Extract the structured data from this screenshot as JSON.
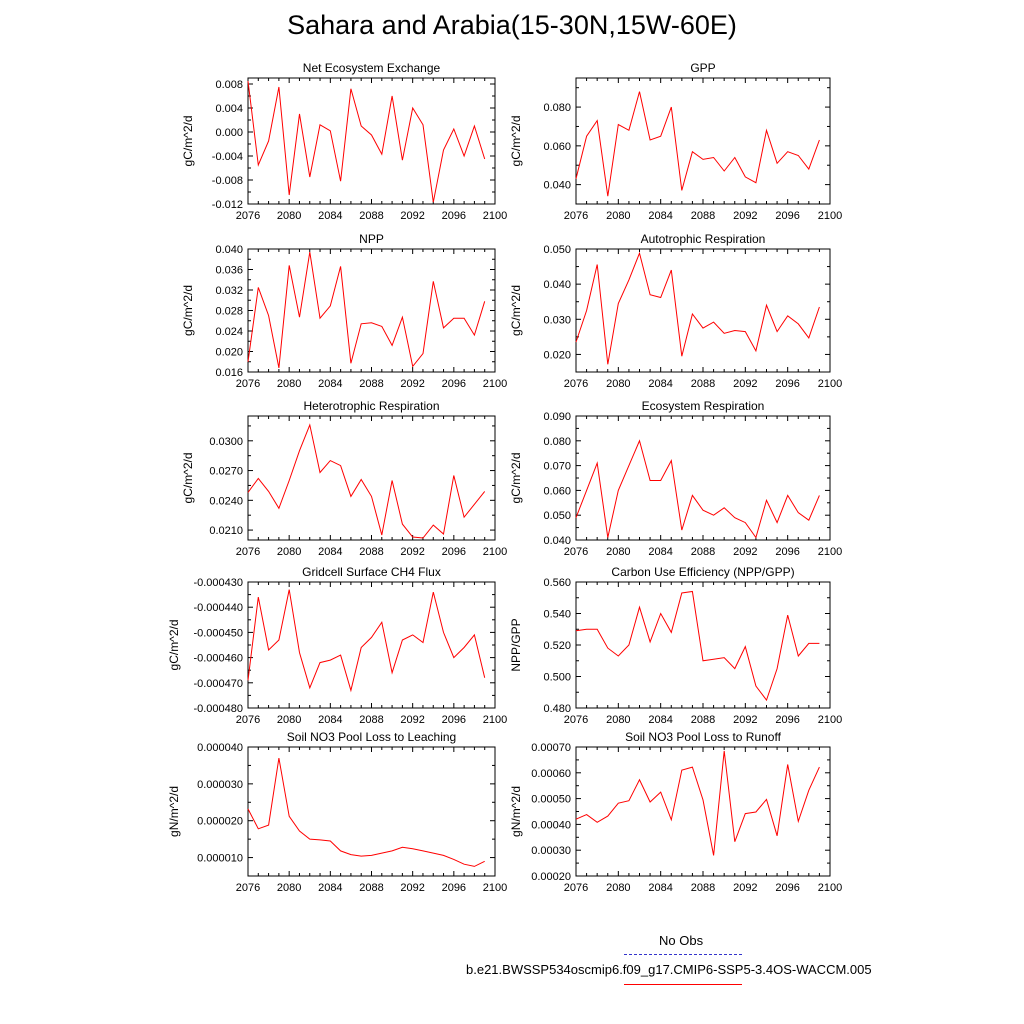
{
  "figure": {
    "title": "Sahara and Arabia(15-30N,15W-60E)"
  },
  "legend": {
    "items": [
      {
        "label": "No Obs",
        "color": "#3333cc",
        "style": "dashed"
      },
      {
        "label": "b.e21.BWSSP534oscmip6.f09_g17.CMIP6-SSP5-3.4OS-WACCM.005",
        "color": "#ff0000",
        "style": "solid"
      }
    ]
  },
  "chart_data": [
    {
      "type": "line",
      "title": "Net Ecosystem Exchange",
      "ylabel": "gC/m^2/d",
      "xlim": [
        2076,
        2100
      ],
      "ylim": [
        -0.012,
        0.009
      ],
      "xticks": [
        2076,
        2080,
        2084,
        2088,
        2092,
        2096,
        2100
      ],
      "yticks": [
        -0.012,
        -0.008,
        -0.004,
        0.0,
        0.004,
        0.008
      ],
      "ytick_labels": [
        "-0.012",
        "-0.008",
        "-0.004",
        "0.000",
        "0.004",
        "0.008"
      ],
      "x": [
        2076,
        2077,
        2078,
        2079,
        2080,
        2081,
        2082,
        2083,
        2084,
        2085,
        2086,
        2087,
        2088,
        2089,
        2090,
        2091,
        2092,
        2093,
        2094,
        2095,
        2096,
        2097,
        2098,
        2099
      ],
      "series": [
        {
          "color": "#ff0000",
          "values": [
            0.0085,
            -0.0055,
            -0.0015,
            0.0075,
            -0.0105,
            0.003,
            -0.0075,
            0.0012,
            0.0002,
            -0.0082,
            0.0072,
            0.001,
            -0.0005,
            -0.0037,
            0.006,
            -0.0047,
            0.004,
            0.0012,
            -0.0117,
            -0.003,
            0.0005,
            -0.004,
            0.001,
            -0.0045
          ]
        }
      ]
    },
    {
      "type": "line",
      "title": "GPP",
      "ylabel": "gC/m^2/d",
      "xlim": [
        2076,
        2100
      ],
      "ylim": [
        0.03,
        0.095
      ],
      "xticks": [
        2076,
        2080,
        2084,
        2088,
        2092,
        2096,
        2100
      ],
      "yticks": [
        0.04,
        0.06,
        0.08
      ],
      "ytick_labels": [
        "0.040",
        "0.060",
        "0.080"
      ],
      "x": [
        2076,
        2077,
        2078,
        2079,
        2080,
        2081,
        2082,
        2083,
        2084,
        2085,
        2086,
        2087,
        2088,
        2089,
        2090,
        2091,
        2092,
        2093,
        2094,
        2095,
        2096,
        2097,
        2098,
        2099
      ],
      "series": [
        {
          "color": "#ff0000",
          "values": [
            0.043,
            0.065,
            0.073,
            0.034,
            0.071,
            0.068,
            0.088,
            0.063,
            0.065,
            0.08,
            0.037,
            0.057,
            0.053,
            0.054,
            0.047,
            0.054,
            0.044,
            0.041,
            0.068,
            0.051,
            0.057,
            0.055,
            0.048,
            0.063
          ]
        }
      ]
    },
    {
      "type": "line",
      "title": "NPP",
      "ylabel": "gC/m^2/d",
      "xlim": [
        2076,
        2100
      ],
      "ylim": [
        0.016,
        0.04
      ],
      "xticks": [
        2076,
        2080,
        2084,
        2088,
        2092,
        2096,
        2100
      ],
      "yticks": [
        0.016,
        0.02,
        0.024,
        0.028,
        0.032,
        0.036,
        0.04
      ],
      "ytick_labels": [
        "0.016",
        "0.020",
        "0.024",
        "0.028",
        "0.032",
        "0.036",
        "0.040"
      ],
      "x": [
        2076,
        2077,
        2078,
        2079,
        2080,
        2081,
        2082,
        2083,
        2084,
        2085,
        2086,
        2087,
        2088,
        2089,
        2090,
        2091,
        2092,
        2093,
        2094,
        2095,
        2096,
        2097,
        2098,
        2099
      ],
      "series": [
        {
          "color": "#ff0000",
          "values": [
            0.018,
            0.0325,
            0.027,
            0.0168,
            0.0368,
            0.0267,
            0.0394,
            0.0265,
            0.0289,
            0.0366,
            0.0177,
            0.0254,
            0.0256,
            0.0249,
            0.0212,
            0.0267,
            0.0171,
            0.0196,
            0.0337,
            0.0246,
            0.0265,
            0.0265,
            0.0232,
            0.0298
          ]
        }
      ]
    },
    {
      "type": "line",
      "title": "Autotrophic Respiration",
      "ylabel": "gC/m^2/d",
      "xlim": [
        2076,
        2100
      ],
      "ylim": [
        0.015,
        0.05
      ],
      "xticks": [
        2076,
        2080,
        2084,
        2088,
        2092,
        2096,
        2100
      ],
      "yticks": [
        0.02,
        0.03,
        0.04,
        0.05
      ],
      "ytick_labels": [
        "0.020",
        "0.030",
        "0.040",
        "0.050"
      ],
      "x": [
        2076,
        2077,
        2078,
        2079,
        2080,
        2081,
        2082,
        2083,
        2084,
        2085,
        2086,
        2087,
        2088,
        2089,
        2090,
        2091,
        2092,
        2093,
        2094,
        2095,
        2096,
        2097,
        2098,
        2099
      ],
      "series": [
        {
          "color": "#ff0000",
          "values": [
            0.0235,
            0.0325,
            0.0456,
            0.0172,
            0.0345,
            0.0412,
            0.0488,
            0.037,
            0.0362,
            0.044,
            0.0195,
            0.0315,
            0.0275,
            0.0292,
            0.026,
            0.0268,
            0.0265,
            0.021,
            0.034,
            0.0265,
            0.031,
            0.0287,
            0.0247,
            0.0335
          ]
        }
      ]
    },
    {
      "type": "line",
      "title": "Heterotrophic Respiration",
      "ylabel": "gC/m^2/d",
      "xlim": [
        2076,
        2100
      ],
      "ylim": [
        0.02,
        0.0325
      ],
      "xticks": [
        2076,
        2080,
        2084,
        2088,
        2092,
        2096,
        2100
      ],
      "yticks": [
        0.021,
        0.024,
        0.027,
        0.03
      ],
      "ytick_labels": [
        "0.0210",
        "0.0240",
        "0.0270",
        "0.0300"
      ],
      "x": [
        2076,
        2077,
        2078,
        2079,
        2080,
        2081,
        2082,
        2083,
        2084,
        2085,
        2086,
        2087,
        2088,
        2089,
        2090,
        2091,
        2092,
        2093,
        2094,
        2095,
        2096,
        2097,
        2098,
        2099
      ],
      "series": [
        {
          "color": "#ff0000",
          "values": [
            0.0248,
            0.0262,
            0.0249,
            0.0232,
            0.026,
            0.029,
            0.0316,
            0.0268,
            0.028,
            0.0275,
            0.0244,
            0.0261,
            0.0244,
            0.0205,
            0.026,
            0.0216,
            0.0203,
            0.0202,
            0.0215,
            0.0206,
            0.0265,
            0.0223,
            0.0236,
            0.0249
          ]
        }
      ]
    },
    {
      "type": "line",
      "title": "Ecosystem Respiration",
      "ylabel": "gC/m^2/d",
      "xlim": [
        2076,
        2100
      ],
      "ylim": [
        0.04,
        0.09
      ],
      "xticks": [
        2076,
        2080,
        2084,
        2088,
        2092,
        2096,
        2100
      ],
      "yticks": [
        0.04,
        0.05,
        0.06,
        0.07,
        0.08,
        0.09
      ],
      "ytick_labels": [
        "0.040",
        "0.050",
        "0.060",
        "0.070",
        "0.080",
        "0.090"
      ],
      "x": [
        2076,
        2077,
        2078,
        2079,
        2080,
        2081,
        2082,
        2083,
        2084,
        2085,
        2086,
        2087,
        2088,
        2089,
        2090,
        2091,
        2092,
        2093,
        2094,
        2095,
        2096,
        2097,
        2098,
        2099
      ],
      "series": [
        {
          "color": "#ff0000",
          "values": [
            0.049,
            0.06,
            0.071,
            0.041,
            0.06,
            0.07,
            0.08,
            0.064,
            0.064,
            0.072,
            0.044,
            0.058,
            0.052,
            0.05,
            0.053,
            0.049,
            0.047,
            0.041,
            0.056,
            0.047,
            0.058,
            0.051,
            0.048,
            0.058
          ]
        }
      ]
    },
    {
      "type": "line",
      "title": "Gridcell Surface CH4 Flux",
      "ylabel": "gC/m^2/d",
      "xlim": [
        2076,
        2100
      ],
      "ylim": [
        -0.00048,
        -0.00043
      ],
      "xticks": [
        2076,
        2080,
        2084,
        2088,
        2092,
        2096,
        2100
      ],
      "yticks": [
        -0.00048,
        -0.00047,
        -0.00046,
        -0.00045,
        -0.00044,
        -0.00043
      ],
      "ytick_labels": [
        "-0.000480",
        "-0.000470",
        "-0.000460",
        "-0.000450",
        "-0.000440",
        "-0.000430"
      ],
      "x": [
        2076,
        2077,
        2078,
        2079,
        2080,
        2081,
        2082,
        2083,
        2084,
        2085,
        2086,
        2087,
        2088,
        2089,
        2090,
        2091,
        2092,
        2093,
        2094,
        2095,
        2096,
        2097,
        2098,
        2099
      ],
      "series": [
        {
          "color": "#ff0000",
          "values": [
            -0.000469,
            -0.000436,
            -0.000457,
            -0.000453,
            -0.000433,
            -0.000458,
            -0.000472,
            -0.000462,
            -0.000461,
            -0.000459,
            -0.000473,
            -0.000456,
            -0.000452,
            -0.000446,
            -0.000466,
            -0.000453,
            -0.000451,
            -0.000454,
            -0.000434,
            -0.00045,
            -0.00046,
            -0.000456,
            -0.000451,
            -0.000468
          ]
        }
      ]
    },
    {
      "type": "line",
      "title": "Carbon Use Efficiency (NPP/GPP)",
      "ylabel": "NPP/GPP",
      "xlim": [
        2076,
        2100
      ],
      "ylim": [
        0.48,
        0.56
      ],
      "xticks": [
        2076,
        2080,
        2084,
        2088,
        2092,
        2096,
        2100
      ],
      "yticks": [
        0.48,
        0.5,
        0.52,
        0.54,
        0.56
      ],
      "ytick_labels": [
        "0.480",
        "0.500",
        "0.520",
        "0.540",
        "0.560"
      ],
      "x": [
        2076,
        2077,
        2078,
        2079,
        2080,
        2081,
        2082,
        2083,
        2084,
        2085,
        2086,
        2087,
        2088,
        2089,
        2090,
        2091,
        2092,
        2093,
        2094,
        2095,
        2096,
        2097,
        2098,
        2099
      ],
      "series": [
        {
          "color": "#ff0000",
          "values": [
            0.529,
            0.53,
            0.53,
            0.518,
            0.513,
            0.52,
            0.544,
            0.522,
            0.54,
            0.528,
            0.553,
            0.554,
            0.51,
            0.511,
            0.512,
            0.505,
            0.519,
            0.494,
            0.485,
            0.505,
            0.539,
            0.513,
            0.521,
            0.521
          ]
        }
      ]
    },
    {
      "type": "line",
      "title": "Soil NO3 Pool Loss to Leaching",
      "ylabel": "gN/m^2/d",
      "xlim": [
        2076,
        2100
      ],
      "ylim": [
        5e-06,
        4e-05
      ],
      "xticks": [
        2076,
        2080,
        2084,
        2088,
        2092,
        2096,
        2100
      ],
      "yticks": [
        1e-05,
        2e-05,
        3e-05,
        4e-05
      ],
      "ytick_labels": [
        "0.000010",
        "0.000020",
        "0.000030",
        "0.000040"
      ],
      "x": [
        2076,
        2077,
        2078,
        2079,
        2080,
        2081,
        2082,
        2083,
        2084,
        2085,
        2086,
        2087,
        2088,
        2089,
        2090,
        2091,
        2092,
        2093,
        2094,
        2095,
        2096,
        2097,
        2098,
        2099
      ],
      "series": [
        {
          "color": "#ff0000",
          "values": [
            2.32e-05,
            1.78e-05,
            1.88e-05,
            3.7e-05,
            2.12e-05,
            1.72e-05,
            1.5e-05,
            1.48e-05,
            1.45e-05,
            1.18e-05,
            1.08e-05,
            1.04e-05,
            1.06e-05,
            1.12e-05,
            1.18e-05,
            1.28e-05,
            1.24e-05,
            1.18e-05,
            1.12e-05,
            1.06e-05,
            9.5e-06,
            8.2e-06,
            7.6e-06,
            9e-06
          ]
        }
      ]
    },
    {
      "type": "line",
      "title": "Soil NO3 Pool Loss to Runoff",
      "ylabel": "gN/m^2/d",
      "xlim": [
        2076,
        2100
      ],
      "ylim": [
        0.0002,
        0.0007
      ],
      "xticks": [
        2076,
        2080,
        2084,
        2088,
        2092,
        2096,
        2100
      ],
      "yticks": [
        0.0002,
        0.0003,
        0.0004,
        0.0005,
        0.0006,
        0.0007
      ],
      "ytick_labels": [
        "0.00020",
        "0.00030",
        "0.00040",
        "0.00050",
        "0.00060",
        "0.00070"
      ],
      "x": [
        2076,
        2077,
        2078,
        2079,
        2080,
        2081,
        2082,
        2083,
        2084,
        2085,
        2086,
        2087,
        2088,
        2089,
        2090,
        2091,
        2092,
        2093,
        2094,
        2095,
        2096,
        2097,
        2098,
        2099
      ],
      "series": [
        {
          "color": "#ff0000",
          "values": [
            0.00042,
            0.000438,
            0.000408,
            0.000432,
            0.000482,
            0.000492,
            0.000573,
            0.000487,
            0.000525,
            0.000418,
            0.00061,
            0.000622,
            0.000495,
            0.00028,
            0.000685,
            0.000333,
            0.000442,
            0.000448,
            0.000497,
            0.000356,
            0.000632,
            0.000412,
            0.000532,
            0.000622
          ]
        }
      ]
    }
  ]
}
